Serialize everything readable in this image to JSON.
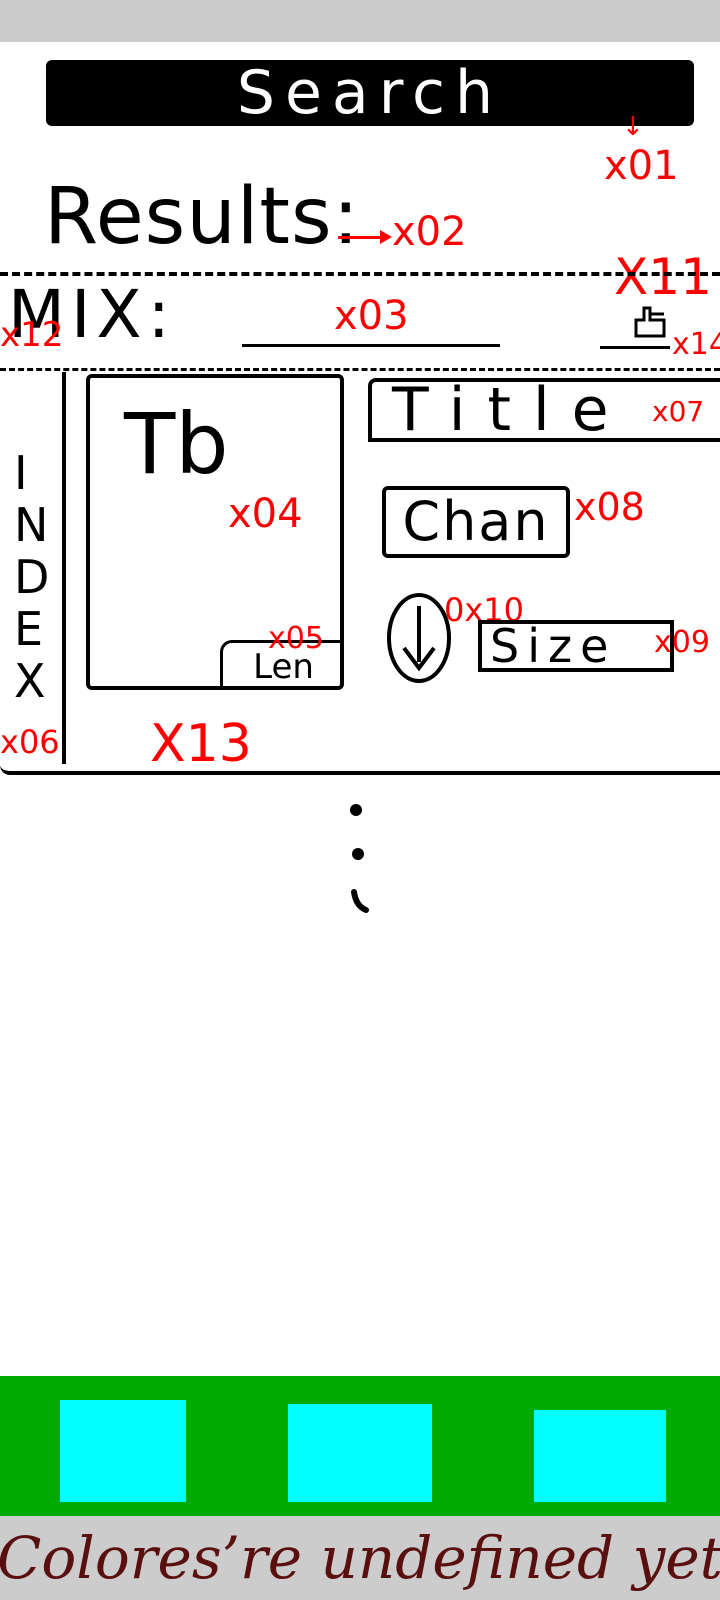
{
  "search": {
    "label": "Search"
  },
  "annotations": {
    "x01": "x01",
    "x02": "x02",
    "x03": "x03",
    "x04": "x04",
    "x05": "x05",
    "x06": "x06",
    "x07": "x07",
    "x08": "x08",
    "x09": "x09",
    "x10": "0x10",
    "x11": "X11",
    "x12": "x12",
    "x13": "X13",
    "x14": "x14"
  },
  "results": {
    "label": "Results:"
  },
  "mix": {
    "label": "MIX:"
  },
  "index_sidebar": {
    "letters": [
      "I",
      "N",
      "D",
      "E",
      "X"
    ]
  },
  "result_item": {
    "thumbnail": "Tb",
    "length": "Len",
    "title": "Title",
    "channel": "Chan",
    "size": "Size"
  },
  "footer": {
    "note": "Colores’re undefined yet"
  },
  "colors": {
    "status_bar": "#cccccc",
    "search_bar": "#000000",
    "nav_bar": "#00aa00",
    "nav_button": "#00ffff",
    "annotation": "#ff0000",
    "footer_text": "#5a0f0f"
  },
  "icons": {
    "mix_action": "hand-pointer-icon",
    "download": "download-arrow-icon"
  }
}
